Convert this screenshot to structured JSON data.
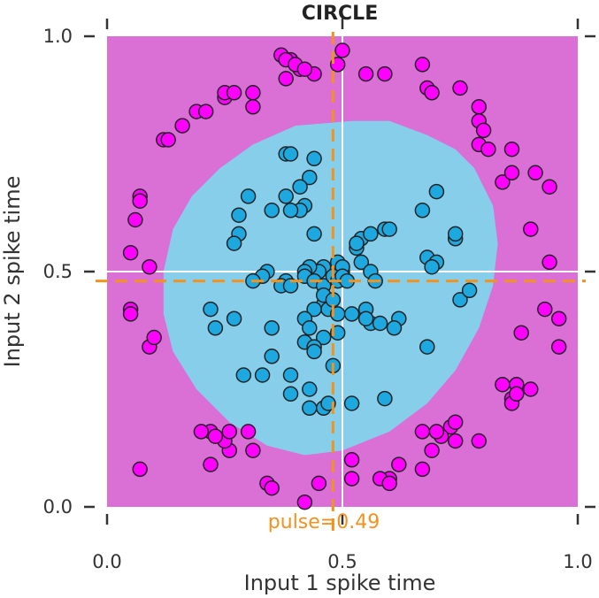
{
  "chart_data": {
    "type": "scatter",
    "title": "CIRCLE",
    "xlabel": "Input 1 spike time",
    "ylabel": "Input 2 spike time",
    "xlim": [
      0.0,
      1.0
    ],
    "ylim": [
      0.0,
      1.0
    ],
    "x_ticks": [
      "0.0",
      "0.5",
      "1.0"
    ],
    "y_ticks": [
      "0.0",
      "0.5",
      "1.0"
    ],
    "grid": "white lines at 0.5",
    "background_color": "#da70d6",
    "decision_region_color": "#87ceeb",
    "decision_region_boundary": [
      [
        0.4,
        0.81
      ],
      [
        0.52,
        0.82
      ],
      [
        0.6,
        0.82
      ],
      [
        0.68,
        0.79
      ],
      [
        0.74,
        0.76
      ],
      [
        0.78,
        0.72
      ],
      [
        0.82,
        0.64
      ],
      [
        0.83,
        0.56
      ],
      [
        0.82,
        0.47
      ],
      [
        0.79,
        0.38
      ],
      [
        0.74,
        0.29
      ],
      [
        0.68,
        0.22
      ],
      [
        0.6,
        0.16
      ],
      [
        0.5,
        0.12
      ],
      [
        0.42,
        0.11
      ],
      [
        0.34,
        0.13
      ],
      [
        0.26,
        0.18
      ],
      [
        0.19,
        0.25
      ],
      [
        0.14,
        0.33
      ],
      [
        0.12,
        0.41
      ],
      [
        0.12,
        0.5
      ],
      [
        0.14,
        0.59
      ],
      [
        0.18,
        0.66
      ],
      [
        0.24,
        0.72
      ],
      [
        0.31,
        0.77
      ]
    ],
    "vline": {
      "x": 0.48,
      "color": "#f2921f"
    },
    "hline": {
      "y": 0.48,
      "color": "#f2921f"
    },
    "pulse_label": "pulse=0.49",
    "series": [
      {
        "color": "#ff00ff",
        "points": [
          [
            0.07,
            0.08
          ],
          [
            0.37,
            0.96
          ],
          [
            0.39,
            0.95
          ],
          [
            0.41,
            0.93
          ],
          [
            0.44,
            0.92
          ],
          [
            0.49,
            0.94
          ],
          [
            0.5,
            0.97
          ],
          [
            0.55,
            0.92
          ],
          [
            0.59,
            0.92
          ],
          [
            0.67,
            0.94
          ],
          [
            0.68,
            0.89
          ],
          [
            0.69,
            0.88
          ],
          [
            0.75,
            0.89
          ],
          [
            0.79,
            0.85
          ],
          [
            0.79,
            0.82
          ],
          [
            0.8,
            0.8
          ],
          [
            0.79,
            0.77
          ],
          [
            0.81,
            0.76
          ],
          [
            0.86,
            0.76
          ],
          [
            0.84,
            0.69
          ],
          [
            0.86,
            0.71
          ],
          [
            0.91,
            0.71
          ],
          [
            0.94,
            0.68
          ],
          [
            0.9,
            0.59
          ],
          [
            0.94,
            0.52
          ],
          [
            0.93,
            0.42
          ],
          [
            0.96,
            0.4
          ],
          [
            0.96,
            0.34
          ],
          [
            0.88,
            0.37
          ],
          [
            0.84,
            0.26
          ],
          [
            0.86,
            0.23
          ],
          [
            0.86,
            0.22
          ],
          [
            0.87,
            0.26
          ],
          [
            0.87,
            0.24
          ],
          [
            0.9,
            0.25
          ],
          [
            0.73,
            0.17
          ],
          [
            0.74,
            0.18
          ],
          [
            0.71,
            0.15
          ],
          [
            0.7,
            0.16
          ],
          [
            0.67,
            0.16
          ],
          [
            0.74,
            0.14
          ],
          [
            0.79,
            0.14
          ],
          [
            0.69,
            0.12
          ],
          [
            0.67,
            0.08
          ],
          [
            0.6,
            0.06
          ],
          [
            0.62,
            0.09
          ],
          [
            0.58,
            0.06
          ],
          [
            0.6,
            0.05
          ],
          [
            0.52,
            0.1
          ],
          [
            0.52,
            0.06
          ],
          [
            0.45,
            0.05
          ],
          [
            0.42,
            0.01
          ],
          [
            0.34,
            0.05
          ],
          [
            0.35,
            0.04
          ],
          [
            0.31,
            0.12
          ],
          [
            0.26,
            0.12
          ],
          [
            0.25,
            0.14
          ],
          [
            0.22,
            0.09
          ],
          [
            0.22,
            0.16
          ],
          [
            0.2,
            0.16
          ],
          [
            0.23,
            0.15
          ],
          [
            0.3,
            0.16
          ],
          [
            0.26,
            0.16
          ],
          [
            0.09,
            0.34
          ],
          [
            0.1,
            0.36
          ],
          [
            0.05,
            0.42
          ],
          [
            0.05,
            0.41
          ],
          [
            0.05,
            0.54
          ],
          [
            0.06,
            0.61
          ],
          [
            0.07,
            0.66
          ],
          [
            0.07,
            0.65
          ],
          [
            0.09,
            0.51
          ],
          [
            0.12,
            0.78
          ],
          [
            0.13,
            0.78
          ],
          [
            0.16,
            0.81
          ],
          [
            0.19,
            0.84
          ],
          [
            0.21,
            0.84
          ],
          [
            0.25,
            0.87
          ],
          [
            0.25,
            0.88
          ],
          [
            0.27,
            0.88
          ],
          [
            0.31,
            0.88
          ],
          [
            0.31,
            0.85
          ],
          [
            0.38,
            0.95
          ],
          [
            0.4,
            0.94
          ],
          [
            0.42,
            0.93
          ],
          [
            0.38,
            0.91
          ]
        ]
      },
      {
        "color": "#1ea8e0",
        "points": [
          [
            0.38,
            0.75
          ],
          [
            0.39,
            0.75
          ],
          [
            0.44,
            0.74
          ],
          [
            0.43,
            0.7
          ],
          [
            0.41,
            0.68
          ],
          [
            0.42,
            0.64
          ],
          [
            0.41,
            0.63
          ],
          [
            0.38,
            0.66
          ],
          [
            0.39,
            0.63
          ],
          [
            0.35,
            0.63
          ],
          [
            0.3,
            0.66
          ],
          [
            0.28,
            0.62
          ],
          [
            0.28,
            0.58
          ],
          [
            0.27,
            0.56
          ],
          [
            0.44,
            0.58
          ],
          [
            0.53,
            0.55
          ],
          [
            0.54,
            0.57
          ],
          [
            0.56,
            0.58
          ],
          [
            0.59,
            0.59
          ],
          [
            0.6,
            0.59
          ],
          [
            0.67,
            0.63
          ],
          [
            0.7,
            0.67
          ],
          [
            0.68,
            0.53
          ],
          [
            0.7,
            0.52
          ],
          [
            0.74,
            0.57
          ],
          [
            0.74,
            0.58
          ],
          [
            0.69,
            0.51
          ],
          [
            0.54,
            0.52
          ],
          [
            0.53,
            0.56
          ],
          [
            0.49,
            0.52
          ],
          [
            0.5,
            0.5
          ],
          [
            0.5,
            0.51
          ],
          [
            0.46,
            0.51
          ],
          [
            0.45,
            0.5
          ],
          [
            0.43,
            0.51
          ],
          [
            0.42,
            0.5
          ],
          [
            0.38,
            0.48
          ],
          [
            0.34,
            0.5
          ],
          [
            0.33,
            0.49
          ],
          [
            0.31,
            0.48
          ],
          [
            0.37,
            0.47
          ],
          [
            0.39,
            0.47
          ],
          [
            0.42,
            0.49
          ],
          [
            0.44,
            0.48
          ],
          [
            0.46,
            0.47
          ],
          [
            0.48,
            0.49
          ],
          [
            0.49,
            0.48
          ],
          [
            0.5,
            0.49
          ],
          [
            0.51,
            0.48
          ],
          [
            0.56,
            0.5
          ],
          [
            0.57,
            0.48
          ],
          [
            0.46,
            0.43
          ],
          [
            0.47,
            0.42
          ],
          [
            0.44,
            0.42
          ],
          [
            0.42,
            0.4
          ],
          [
            0.46,
            0.45
          ],
          [
            0.48,
            0.44
          ],
          [
            0.49,
            0.41
          ],
          [
            0.52,
            0.41
          ],
          [
            0.55,
            0.42
          ],
          [
            0.56,
            0.39
          ],
          [
            0.55,
            0.4
          ],
          [
            0.58,
            0.39
          ],
          [
            0.62,
            0.4
          ],
          [
            0.61,
            0.38
          ],
          [
            0.68,
            0.34
          ],
          [
            0.75,
            0.44
          ],
          [
            0.77,
            0.46
          ],
          [
            0.22,
            0.42
          ],
          [
            0.23,
            0.38
          ],
          [
            0.27,
            0.4
          ],
          [
            0.35,
            0.38
          ],
          [
            0.35,
            0.32
          ],
          [
            0.42,
            0.35
          ],
          [
            0.43,
            0.38
          ],
          [
            0.49,
            0.37
          ],
          [
            0.46,
            0.36
          ],
          [
            0.44,
            0.34
          ],
          [
            0.33,
            0.28
          ],
          [
            0.39,
            0.28
          ],
          [
            0.29,
            0.28
          ],
          [
            0.39,
            0.24
          ],
          [
            0.43,
            0.25
          ],
          [
            0.43,
            0.21
          ],
          [
            0.46,
            0.21
          ],
          [
            0.47,
            0.22
          ],
          [
            0.52,
            0.22
          ],
          [
            0.59,
            0.23
          ],
          [
            0.44,
            0.33
          ],
          [
            0.48,
            0.3
          ]
        ]
      }
    ]
  }
}
